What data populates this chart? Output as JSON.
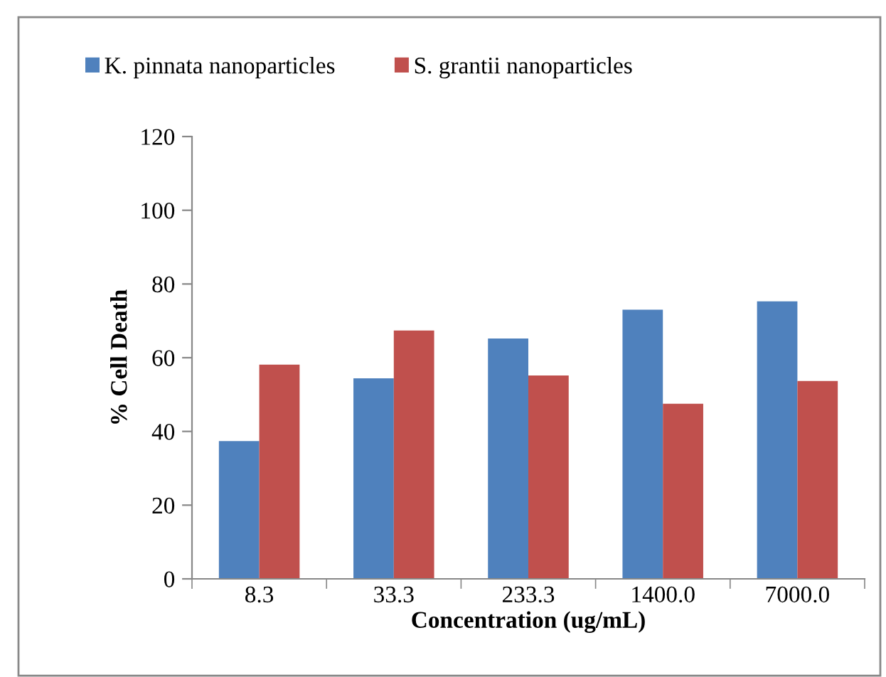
{
  "chart_data": {
    "type": "bar",
    "xlabel": "Concentration (ug/mL)",
    "ylabel": "% Cell Death",
    "categories": [
      "8.3",
      "33.3",
      "233.3",
      "1400.0",
      "7000.0"
    ],
    "series": [
      {
        "name": "K. pinnata nanoparticles",
        "color": "#4f81bd",
        "values": [
          37.4,
          54.4,
          65.2,
          73.0,
          75.3
        ]
      },
      {
        "name": "S. grantii nanoparticles",
        "color": "#c0504d",
        "values": [
          58.1,
          67.4,
          55.2,
          47.5,
          53.7
        ]
      }
    ],
    "ylim": [
      0,
      120
    ],
    "yticks": [
      0,
      20,
      40,
      60,
      80,
      100,
      120
    ],
    "grid": false,
    "legend": "top left"
  }
}
